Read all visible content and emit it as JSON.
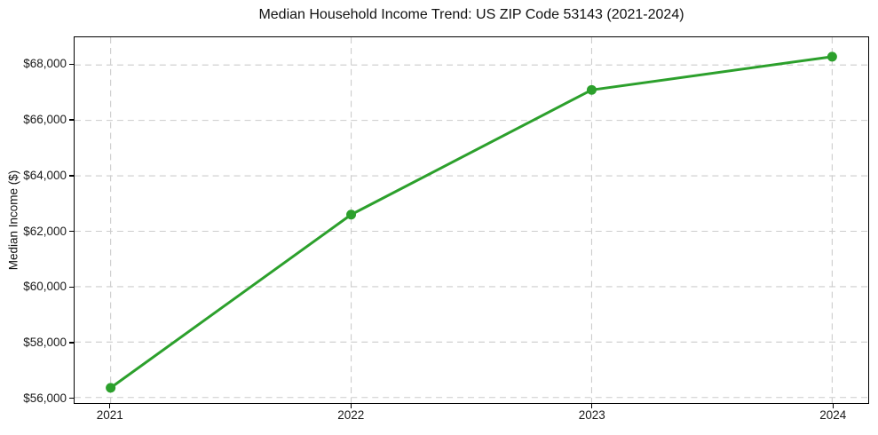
{
  "chart_data": {
    "type": "line",
    "title": "Median Household Income Trend: US ZIP Code 53143 (2021-2024)",
    "xlabel": "",
    "ylabel": "Median Income ($)",
    "categories": [
      2021,
      2022,
      2023,
      2024
    ],
    "series": [
      {
        "name": "Median Household Income",
        "values": [
          56350,
          62600,
          67100,
          68300
        ]
      }
    ],
    "x_tick_labels": [
      "2021",
      "2022",
      "2023",
      "2024"
    ],
    "y_ticks": [
      56000,
      58000,
      60000,
      62000,
      64000,
      66000,
      68000
    ],
    "y_tick_labels": [
      "$56,000",
      "$58,000",
      "$60,000",
      "$62,000",
      "$64,000",
      "$66,000",
      "$68,000"
    ],
    "ylim": [
      55800,
      69000
    ],
    "xlim": [
      2020.85,
      2024.15
    ],
    "grid": true,
    "grid_style": "dashed",
    "legend": false,
    "colors": {
      "line": "#2ca02c",
      "marker": "#2ca02c",
      "grid": "#cccccc",
      "axis": "#000000",
      "text": "#1a1a1a"
    }
  }
}
